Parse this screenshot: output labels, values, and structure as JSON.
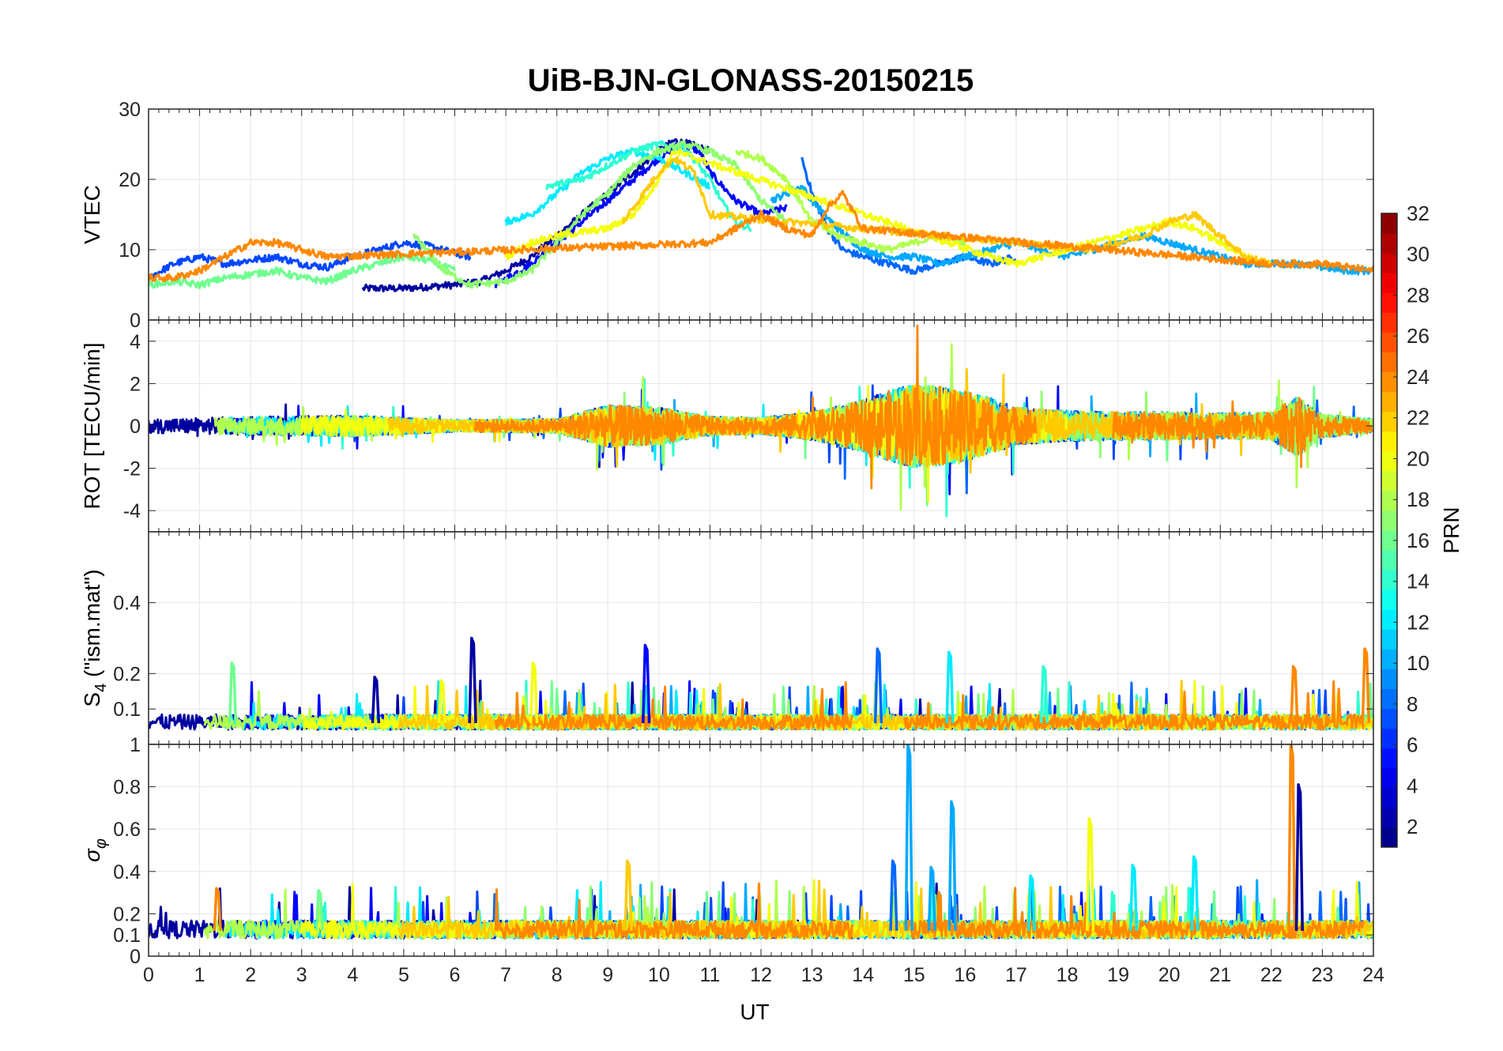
{
  "chart_data": {
    "type": "line",
    "title": "UiB-BJN-GLONASS-20150215",
    "xlabel": "UT",
    "x_range": [
      0,
      24
    ],
    "x_ticks": [
      "0",
      "1",
      "2",
      "3",
      "4",
      "5",
      "6",
      "7",
      "8",
      "9",
      "10",
      "11",
      "12",
      "13",
      "14",
      "15",
      "16",
      "17",
      "18",
      "19",
      "20",
      "21",
      "22",
      "23",
      "24"
    ],
    "grid": true,
    "panels": [
      {
        "id": "vtec",
        "ylabel": "VTEC",
        "ylim": [
          0,
          30
        ],
        "y_ticks": [
          "0",
          "10",
          "20",
          "30"
        ],
        "y_tick_values": [
          0,
          10,
          20,
          30
        ],
        "series": [
          {
            "name": "PRN 2",
            "prn": 2,
            "x": [
              4.2,
              5.0,
              6.0,
              6.5,
              7.0,
              7.5,
              8.0,
              8.5,
              9.0,
              9.5,
              10.0,
              10.3,
              10.6,
              11.0
            ],
            "y": [
              4.5,
              4.5,
              5.0,
              5.5,
              7,
              9,
              12,
              15,
              18,
              21,
              24,
              25.5,
              25,
              24
            ]
          },
          {
            "name": "PRN 5",
            "prn": 5,
            "x": [
              6.8,
              7.5,
              8.0,
              8.5,
              9.0,
              9.5,
              10.0,
              10.4,
              10.8,
              11.0,
              11.5,
              12.0,
              12.5
            ],
            "y": [
              5,
              8,
              11,
              14,
              17,
              20,
              23,
              25,
              24,
              21,
              17,
              15,
              16
            ]
          },
          {
            "name": "PRN 7",
            "prn": 7,
            "x": [
              0,
              0.5,
              1,
              1.5,
              2,
              2.5,
              3,
              3.5,
              4,
              4.5,
              5,
              5.5,
              6,
              6.3
            ],
            "y": [
              6,
              8,
              9,
              8,
              8.5,
              9,
              8,
              7.5,
              9,
              10,
              11,
              10.5,
              9.5,
              9
            ]
          },
          {
            "name": "PRN 8",
            "prn": 8,
            "x": [
              12.8,
              13.0,
              13.3,
              13.6,
              14,
              14.5,
              15,
              15.5,
              16,
              16.5,
              17
            ],
            "y": [
              23,
              18,
              13,
              10,
              9,
              8,
              7,
              8,
              9,
              8,
              9
            ]
          },
          {
            "name": "PRN 10",
            "prn": 10,
            "x": [
              12.2,
              12.5,
              12.8,
              13,
              13.5,
              14,
              14.5,
              15,
              15.5,
              16,
              16.5,
              17,
              17.5,
              18,
              18.5,
              19,
              19.5,
              20,
              20.5,
              21,
              21.5,
              22,
              22.5,
              23,
              23.5,
              24
            ],
            "y": [
              17,
              18,
              19,
              17,
              13,
              10,
              9,
              9,
              8,
              9,
              10,
              11,
              10,
              9,
              10,
              11,
              12,
              11,
              10,
              9,
              8,
              8,
              8,
              7.5,
              7,
              7
            ]
          },
          {
            "name": "PRN 12",
            "prn": 12,
            "x": [
              7.0,
              7.5,
              8.0,
              8.5,
              9.0,
              9.5,
              10.0,
              10.5,
              11.0
            ],
            "y": [
              14,
              15,
              18,
              21,
              23,
              24,
              23,
              21,
              19
            ]
          },
          {
            "name": "PRN 14",
            "prn": 14,
            "x": [
              7.8,
              8.5,
              9.0,
              9.5,
              10,
              10.5,
              11,
              11.3,
              11.5,
              11.8
            ],
            "y": [
              19,
              20,
              22,
              24,
              25,
              24.5,
              20,
              16,
              14,
              13
            ]
          },
          {
            "name": "PRN 16",
            "prn": 16,
            "x": [
              0,
              0.5,
              1,
              1.5,
              2,
              2.5,
              3,
              3.5,
              4,
              4.5,
              5,
              5.5,
              6
            ],
            "y": [
              5,
              5.5,
              5,
              6,
              6.5,
              7,
              6,
              5.5,
              7,
              8,
              9,
              8.5,
              7
            ]
          },
          {
            "name": "PRN 17",
            "prn": 17,
            "x": [
              5.2,
              5.8,
              6.3,
              7.0,
              7.5,
              8.0,
              8.5,
              9.0,
              9.5,
              10.0,
              10.5,
              11.0,
              11.5,
              12.0,
              12.5
            ],
            "y": [
              12,
              7,
              5,
              5.5,
              7,
              11,
              15,
              18,
              22,
              24,
              25,
              24,
              22,
              17,
              14
            ]
          },
          {
            "name": "PRN 18",
            "prn": 18,
            "x": [
              11.5,
              12,
              12.5,
              13,
              13.5,
              14,
              14.5,
              15,
              15.5,
              16
            ],
            "y": [
              24,
              23,
              20,
              14,
              12,
              11,
              10,
              11,
              12,
              11
            ]
          },
          {
            "name": "PRN 20",
            "prn": 20,
            "x": [
              7.0,
              7.5,
              8.0,
              8.5,
              9.0,
              9.5,
              9.9,
              10.3,
              16.5,
              17,
              17.5,
              18,
              18.5,
              19,
              19.5,
              20,
              20.5,
              21,
              21.5,
              22
            ],
            "y": [
              9,
              11,
              12,
              12.5,
              13,
              15,
              19,
              24,
              9,
              8,
              9,
              10,
              11,
              12,
              13,
              14,
              13,
              11,
              9,
              8
            ]
          },
          {
            "name": "PRN 22",
            "prn": 22,
            "x": [
              9.3,
              9.6,
              10.0,
              10.3,
              10.7,
              11.0,
              18.5,
              19,
              19.5,
              20,
              20.5,
              21,
              21.5,
              22
            ],
            "y": [
              14,
              17,
              21,
              23,
              21,
              15,
              10,
              11,
              12,
              14,
              15,
              12,
              9,
              8
            ]
          },
          {
            "name": "PRN 24",
            "prn": 24,
            "x": [
              0,
              0.5,
              1,
              1.5,
              2,
              2.5,
              3,
              3.5,
              11,
              11.5,
              12,
              12.5,
              13,
              13.3,
              13.6,
              14,
              22,
              22.5,
              23,
              23.5,
              24
            ],
            "y": [
              6,
              6,
              7,
              9,
              11,
              11,
              10,
              9,
              11,
              13,
              15,
              13,
              12,
              16,
              18,
              13,
              8,
              8,
              8,
              7.5,
              7
            ]
          }
        ]
      },
      {
        "id": "rot",
        "ylabel": "ROT [TECU/min]",
        "ylim": [
          -5,
          5
        ],
        "y_ticks": [
          "-4",
          "-2",
          "0",
          "2",
          "4"
        ],
        "y_tick_values": [
          -4,
          -2,
          0,
          2,
          4
        ],
        "envelope": {
          "x": [
            0,
            2,
            4,
            6,
            8,
            9,
            10,
            11,
            12,
            13,
            14,
            14.5,
            15,
            15.5,
            16,
            16.5,
            17,
            18,
            19,
            20,
            21,
            22,
            22.5,
            23,
            24
          ],
          "amplitude": [
            0.6,
            0.8,
            0.9,
            0.5,
            0.6,
            1.8,
            1.6,
            0.8,
            0.7,
            1.2,
            2.2,
            3.0,
            3.6,
            3.4,
            3.0,
            2.4,
            1.6,
            1.3,
            1.2,
            1.2,
            1.1,
            1.2,
            2.6,
            1.0,
            0.6
          ]
        },
        "series_prns": [
          2,
          5,
          7,
          8,
          10,
          12,
          14,
          16,
          17,
          18,
          20,
          22,
          24
        ]
      },
      {
        "id": "s4",
        "ylabel": "S4 (\"ism.mat\")",
        "ylim": [
          0,
          0.6
        ],
        "y_ticks": [
          "0.1",
          "0.2",
          "0.4"
        ],
        "y_tick_values": [
          0.1,
          0.2,
          0.4
        ],
        "baseline": 0.06,
        "peaks": [
          {
            "x": 6.35,
            "y": 0.3,
            "prn": 2
          },
          {
            "x": 9.75,
            "y": 0.28,
            "prn": 5
          },
          {
            "x": 14.3,
            "y": 0.27,
            "prn": 8
          },
          {
            "x": 15.7,
            "y": 0.26,
            "prn": 12
          },
          {
            "x": 23.85,
            "y": 0.27,
            "prn": 24
          },
          {
            "x": 1.65,
            "y": 0.23,
            "prn": 16
          },
          {
            "x": 7.55,
            "y": 0.23,
            "prn": 20
          },
          {
            "x": 17.55,
            "y": 0.22,
            "prn": 14
          },
          {
            "x": 4.45,
            "y": 0.19,
            "prn": 2
          },
          {
            "x": 5.75,
            "y": 0.18,
            "prn": 20
          },
          {
            "x": 22.45,
            "y": 0.22,
            "prn": 24
          }
        ],
        "series_prns": [
          2,
          5,
          7,
          8,
          10,
          12,
          14,
          16,
          17,
          18,
          20,
          22,
          24
        ]
      },
      {
        "id": "sigma",
        "ylabel": "σφ",
        "ylim": [
          0,
          1
        ],
        "y_ticks": [
          "0",
          "0.1",
          "0.2",
          "0.4",
          "0.6",
          "0.8",
          "1"
        ],
        "y_tick_values": [
          0,
          0.1,
          0.2,
          0.4,
          0.6,
          0.8,
          1
        ],
        "baseline": 0.12,
        "peaks": [
          {
            "x": 14.9,
            "y": 1.0,
            "prn": 10
          },
          {
            "x": 22.4,
            "y": 1.0,
            "prn": 24
          },
          {
            "x": 22.55,
            "y": 0.81,
            "prn": 2
          },
          {
            "x": 15.75,
            "y": 0.73,
            "prn": 10
          },
          {
            "x": 18.45,
            "y": 0.65,
            "prn": 20
          },
          {
            "x": 9.4,
            "y": 0.45,
            "prn": 22
          },
          {
            "x": 14.6,
            "y": 0.45,
            "prn": 8
          },
          {
            "x": 20.5,
            "y": 0.47,
            "prn": 12
          },
          {
            "x": 1.35,
            "y": 0.32,
            "prn": 24
          },
          {
            "x": 3.35,
            "y": 0.31,
            "prn": 16
          },
          {
            "x": 19.3,
            "y": 0.43,
            "prn": 12
          },
          {
            "x": 17.3,
            "y": 0.38,
            "prn": 12
          },
          {
            "x": 15.35,
            "y": 0.42,
            "prn": 10
          }
        ],
        "series_prns": [
          2,
          5,
          7,
          8,
          10,
          12,
          14,
          16,
          17,
          18,
          20,
          22,
          24
        ]
      }
    ],
    "colorbar": {
      "label": "PRN",
      "range": [
        1,
        32
      ],
      "ticks": [
        "2",
        "4",
        "6",
        "8",
        "10",
        "12",
        "14",
        "16",
        "18",
        "20",
        "22",
        "24",
        "26",
        "28",
        "30",
        "32"
      ],
      "tick_values": [
        2,
        4,
        6,
        8,
        10,
        12,
        14,
        16,
        18,
        20,
        22,
        24,
        26,
        28,
        30,
        32
      ],
      "colormap": "jet",
      "levels": 32
    }
  }
}
